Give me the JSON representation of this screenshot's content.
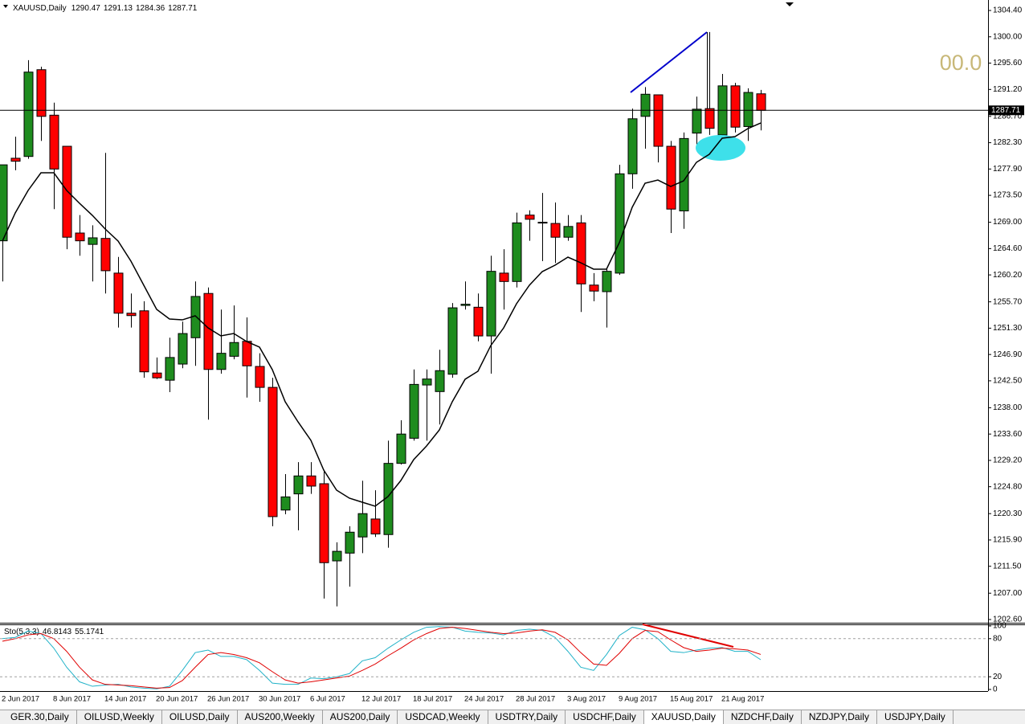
{
  "chart_data": [
    {
      "type": "candlestick",
      "title": "XAUUSD,Daily",
      "annotation": "00.0",
      "up_color": "#1e8c1e",
      "down_color": "#ff0000",
      "grid": false,
      "categories": [
        "2 Jun 2017",
        null,
        null,
        null,
        "8 Jun 2017",
        null,
        null,
        null,
        "14 Jun 2017",
        null,
        null,
        null,
        "20 Jun 2017",
        null,
        null,
        null,
        "26 Jun 2017",
        null,
        null,
        null,
        "30 Jun 2017",
        null,
        null,
        null,
        "6 Jul 2017",
        null,
        null,
        null,
        "12 Jul 2017",
        null,
        null,
        null,
        "18 Jul 2017",
        null,
        null,
        null,
        "24 Jul 2017",
        null,
        null,
        null,
        "28 Jul 2017",
        null,
        null,
        null,
        "3 Aug 2017",
        null,
        null,
        null,
        "9 Aug 2017",
        null,
        null,
        null,
        "15 Aug 2017",
        null,
        null,
        null,
        "21 Aug 2017",
        null,
        null,
        null
      ],
      "open": [
        1265.9,
        1279.7,
        1280.0,
        1294.5,
        1286.9,
        1281.7,
        1267.2,
        1265.3,
        1266.3,
        1260.5,
        1253.8,
        1254.2,
        1243.8,
        1242.6,
        1245.3,
        1249.7,
        1257.1,
        1244.4,
        1246.6,
        1249.1,
        1244.9,
        1241.4,
        1220.9,
        1223.6,
        1226.6,
        1225.3,
        1212.4,
        1213.7,
        1216.4,
        1219.4,
        1216.8,
        1228.7,
        1232.9,
        1241.8,
        1240.7,
        1243.6,
        1255.1,
        1254.8,
        1250.0,
        1260.5,
        1259.1,
        1270.2,
        1268.9,
        1268.8,
        1266.5,
        1268.9,
        1258.5,
        1257.4,
        1260.5,
        1277.1,
        1286.7,
        1290.3,
        1281.7,
        1270.9,
        1283.9,
        1288.0,
        1283.6,
        1291.8,
        1285.0,
        1290.47
      ],
      "high": [
        1278.6,
        1283.3,
        1296.1,
        1295.0,
        1289.0,
        1281.7,
        1270.2,
        1268.5,
        1280.6,
        1263.2,
        1257.1,
        1255.8,
        1246.4,
        1249.7,
        1252.4,
        1259.1,
        1258.1,
        1254.4,
        1255.1,
        1253.1,
        1247.1,
        1243.0,
        1226.9,
        1228.9,
        1228.9,
        1227.6,
        1215.5,
        1218.2,
        1225.8,
        1224.2,
        1232.5,
        1235.9,
        1244.4,
        1244.4,
        1247.7,
        1255.5,
        1259.1,
        1257.1,
        1263.4,
        1264.5,
        1270.6,
        1271.0,
        1273.9,
        1272.3,
        1270.2,
        1270.2,
        1260.5,
        1261.2,
        1278.6,
        1288.0,
        1291.6,
        1290.3,
        1282.6,
        1284.0,
        1290.0,
        1300.8,
        1293.8,
        1292.3,
        1291.4,
        1291.13
      ],
      "low": [
        1259.1,
        1277.7,
        1279.6,
        1282.6,
        1271.2,
        1264.5,
        1263.4,
        1259.1,
        1257.1,
        1251.4,
        1251.4,
        1243.0,
        1242.8,
        1240.6,
        1244.6,
        1245.0,
        1236.0,
        1243.7,
        1246.1,
        1239.7,
        1239.0,
        1218.2,
        1220.2,
        1217.5,
        1223.6,
        1206.1,
        1204.8,
        1208.1,
        1213.7,
        1216.4,
        1214.6,
        1228.5,
        1232.5,
        1232.5,
        1235.2,
        1243.0,
        1254.4,
        1249.1,
        1243.7,
        1254.4,
        1258.1,
        1265.9,
        1262.5,
        1262.2,
        1265.9,
        1254.0,
        1255.8,
        1251.4,
        1260.2,
        1274.6,
        1281.3,
        1279.0,
        1267.2,
        1267.9,
        1281.3,
        1283.6,
        1280.4,
        1284.0,
        1282.6,
        1284.36
      ],
      "close": [
        1278.6,
        1279.2,
        1294.1,
        1286.7,
        1277.9,
        1266.5,
        1265.9,
        1266.4,
        1260.9,
        1253.8,
        1253.4,
        1244.0,
        1243.0,
        1246.4,
        1250.4,
        1256.6,
        1244.4,
        1247.1,
        1248.9,
        1245.0,
        1241.4,
        1219.8,
        1223.1,
        1226.6,
        1224.9,
        1212.1,
        1214.0,
        1217.2,
        1220.3,
        1216.9,
        1228.7,
        1233.6,
        1241.9,
        1242.8,
        1244.2,
        1254.7,
        1255.3,
        1250.0,
        1260.8,
        1259.1,
        1268.9,
        1269.5,
        1269.0,
        1266.5,
        1268.3,
        1258.7,
        1257.5,
        1260.8,
        1277.1,
        1286.3,
        1290.4,
        1281.7,
        1271.2,
        1283.0,
        1287.9,
        1284.7,
        1291.8,
        1284.9,
        1290.7,
        1287.71
      ],
      "ma": {
        "color": "#000000",
        "values": [
          1265.86,
          1270.56,
          1274.32,
          1277.27,
          1277.27,
          1274.32,
          1272.17,
          1270.15,
          1267.87,
          1265.86,
          1262.5,
          1258.47,
          1254.44,
          1252.83,
          1252.69,
          1253.37,
          1251.35,
          1250.01,
          1250.41,
          1249.07,
          1248.13,
          1244.37,
          1239.0,
          1235.64,
          1232.55,
          1227.58,
          1224.22,
          1222.88,
          1222.21,
          1221.54,
          1223.15,
          1225.83,
          1229.33,
          1231.61,
          1234.3,
          1239.0,
          1242.76,
          1244.1,
          1248.4,
          1251.35,
          1255.38,
          1258.47,
          1260.75,
          1261.83,
          1263.17,
          1262.23,
          1261.16,
          1261.16,
          1265.59,
          1271.5,
          1275.53,
          1276.06,
          1274.99,
          1275.93,
          1279.02,
          1280.36,
          1283.05,
          1283.31,
          1284.66,
          1285.6
        ]
      },
      "ylim": [
        1202.06,
        1306.15
      ],
      "yticks": [
        {
          "value": 1304.4,
          "label": "1304.40"
        },
        {
          "value": 1300,
          "label": "1300.00"
        },
        {
          "value": 1295.6,
          "label": "1295.60"
        },
        {
          "value": 1291.2,
          "label": "1291.20"
        },
        {
          "value": 1286.7,
          "label": "1286.70"
        },
        {
          "value": 1282.3,
          "label": "1282.30"
        },
        {
          "value": 1277.9,
          "label": "1277.90"
        },
        {
          "value": 1273.5,
          "label": "1273.50"
        },
        {
          "value": 1269,
          "label": "1269.00"
        },
        {
          "value": 1264.6,
          "label": "1264.60"
        },
        {
          "value": 1260.2,
          "label": "1260.20"
        },
        {
          "value": 1255.7,
          "label": "1255.70"
        },
        {
          "value": 1251.3,
          "label": "1251.30"
        },
        {
          "value": 1246.9,
          "label": "1246.90"
        },
        {
          "value": 1242.5,
          "label": "1242.50"
        },
        {
          "value": 1238,
          "label": "1238.00"
        },
        {
          "value": 1233.6,
          "label": "1233.60"
        },
        {
          "value": 1229.2,
          "label": "1229.20"
        },
        {
          "value": 1224.8,
          "label": "1224.80"
        },
        {
          "value": 1220.3,
          "label": "1220.30"
        },
        {
          "value": 1215.9,
          "label": "1215.90"
        },
        {
          "value": 1211.5,
          "label": "1211.50"
        },
        {
          "value": 1207,
          "label": "1207.00"
        },
        {
          "value": 1202.6,
          "label": "1202.60"
        }
      ]
    },
    {
      "type": "line",
      "title": "Sto(5,3,3)",
      "grid": true,
      "series": [
        {
          "color": "#20b2c8",
          "values": [
            80,
            82,
            92,
            88,
            65,
            35,
            12,
            5,
            7,
            8,
            4,
            2,
            1,
            5,
            30,
            58,
            62,
            52,
            52,
            47,
            30,
            10,
            8,
            8,
            18,
            17,
            20,
            25,
            45,
            50,
            65,
            78,
            90,
            98,
            99,
            98,
            92,
            90,
            89,
            86,
            93,
            95,
            93,
            82,
            60,
            35,
            30,
            55,
            85,
            98,
            94,
            80,
            60,
            58,
            62,
            65,
            66,
            60,
            60,
            46.8143
          ]
        },
        {
          "color": "#e00000",
          "values": [
            76,
            80,
            86,
            88,
            80,
            60,
            35,
            15,
            8,
            7,
            6,
            4,
            2,
            3,
            14,
            35,
            55,
            58,
            55,
            50,
            42,
            28,
            15,
            10,
            12,
            15,
            18,
            21,
            30,
            40,
            53,
            65,
            78,
            88,
            96,
            98,
            96,
            93,
            90,
            88,
            89,
            92,
            94,
            90,
            78,
            58,
            40,
            38,
            57,
            80,
            93,
            91,
            78,
            66,
            60,
            62,
            65,
            64,
            62,
            55.1741
          ]
        }
      ],
      "ylim": [
        0,
        100
      ],
      "yticks": [
        0,
        20,
        80,
        100
      ]
    }
  ],
  "tabs": [
    {
      "label": "GER.30,Daily",
      "active": false
    },
    {
      "label": "OILUSD,Weekly",
      "active": false
    },
    {
      "label": "OILUSD,Daily",
      "active": false
    },
    {
      "label": "AUS200,Weekly",
      "active": false
    },
    {
      "label": "AUS200,Daily",
      "active": false
    },
    {
      "label": "USDCAD,Weekly",
      "active": false
    },
    {
      "label": "USDTRY,Daily",
      "active": false
    },
    {
      "label": "USDCHF,Daily",
      "active": false
    },
    {
      "label": "XAUUSD,Daily",
      "active": true
    },
    {
      "label": "NZDCHF,Daily",
      "active": false
    },
    {
      "label": "NZDJPY,Daily",
      "active": false
    },
    {
      "label": "USDJPY,Daily",
      "active": false
    }
  ]
}
